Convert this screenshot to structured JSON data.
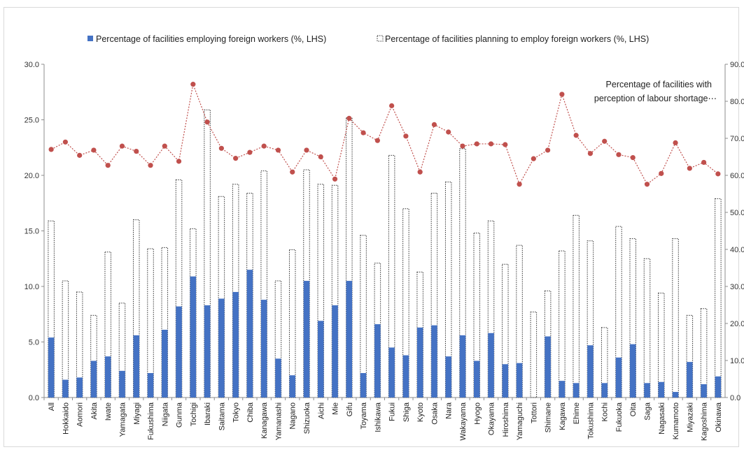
{
  "chart_data": {
    "type": "bar",
    "categories": [
      "All",
      "Hokkaido",
      "Aomori",
      "Akita",
      "Iwate",
      "Yamagata",
      "Miyagi",
      "Fukushima",
      "Niigata",
      "Gunma",
      "Tochigi",
      "Ibaraki",
      "Saitama",
      "Tokyo",
      "Chiba",
      "Kanagawa",
      "Yamanashi",
      "Nagano",
      "Shizuoka",
      "Aichi",
      "Mie",
      "Gifu",
      "Toyama",
      "Ishikawa",
      "Fukui",
      "Shiga",
      "Kyoto",
      "Osaka",
      "Nara",
      "Wakayama",
      "Hyogo",
      "Okayama",
      "Hiroshima",
      "Yamaguchi",
      "Tottori",
      "Shimane",
      "Kagawa",
      "Ehime",
      "Tokushima",
      "Kochi",
      "Fukuoka",
      "Oita",
      "Saga",
      "Nagasaki",
      "Kumamoto",
      "Miyazaki",
      "Kagoshima",
      "Okinawa"
    ],
    "series": [
      {
        "name": "Percentage of facilities employing foreign workers (%, LHS)",
        "kind": "bar",
        "axis": "left",
        "color": "#4472c4",
        "values": [
          5.4,
          1.6,
          1.8,
          3.3,
          3.7,
          2.4,
          5.6,
          2.2,
          6.1,
          8.2,
          10.9,
          8.3,
          8.9,
          9.5,
          11.5,
          8.8,
          3.5,
          2.0,
          10.5,
          6.9,
          8.3,
          10.5,
          2.2,
          6.6,
          4.5,
          3.8,
          6.3,
          6.5,
          3.7,
          5.6,
          3.3,
          5.8,
          3.0,
          3.1,
          0.0,
          5.5,
          1.5,
          1.3,
          4.7,
          1.3,
          3.6,
          4.8,
          1.3,
          1.4,
          0.5,
          3.2,
          1.2,
          1.9
        ]
      },
      {
        "name": "Percentage of facilities planning to employ foreign workers (%, LHS)",
        "kind": "bar-outline",
        "axis": "left",
        "color": "#333333",
        "values": [
          15.9,
          10.5,
          9.5,
          7.4,
          13.1,
          8.5,
          16.0,
          13.4,
          13.5,
          19.6,
          15.2,
          25.9,
          18.1,
          19.2,
          18.4,
          20.4,
          10.5,
          13.3,
          20.5,
          19.2,
          19.1,
          25.2,
          14.6,
          12.1,
          21.8,
          17.0,
          11.3,
          18.4,
          19.4,
          22.4,
          14.8,
          15.9,
          12.0,
          13.7,
          7.7,
          9.6,
          13.2,
          16.4,
          14.1,
          6.3,
          15.4,
          14.3,
          12.5,
          9.4,
          14.3,
          7.4,
          8.0,
          17.9
        ]
      },
      {
        "name": "Percentage of facilities with perception of labour shortage",
        "kind": "line",
        "axis": "right",
        "color": "#c0504d",
        "values": [
          67.0,
          69.0,
          65.4,
          66.8,
          62.7,
          67.9,
          66.5,
          62.7,
          67.9,
          63.8,
          84.6,
          74.4,
          67.3,
          64.6,
          66.2,
          67.9,
          66.8,
          60.9,
          66.8,
          65.0,
          59.0,
          75.4,
          71.5,
          69.4,
          78.8,
          70.6,
          60.9,
          73.7,
          71.7,
          67.9,
          68.5,
          68.5,
          68.3,
          57.6,
          64.5,
          66.8,
          81.9,
          70.8,
          65.9,
          69.2,
          65.6,
          64.8,
          57.6,
          60.5,
          68.8,
          61.9,
          63.5,
          60.4
        ]
      }
    ],
    "ylim": [
      0,
      30
    ],
    "yticks": [
      "0.0",
      "5.0",
      "10.0",
      "15.0",
      "20.0",
      "25.0",
      "30.0"
    ],
    "y2lim": [
      0,
      90
    ],
    "y2ticks": [
      "0.0",
      "10.0",
      "20.0",
      "30.0",
      "40.0",
      "50.0",
      "60.0",
      "70.0",
      "80.0",
      "90.0"
    ],
    "annotation": [
      "Percentage of facilities with",
      "perception of labour shortage⋯"
    ],
    "legend_position": "top",
    "grid": false
  }
}
